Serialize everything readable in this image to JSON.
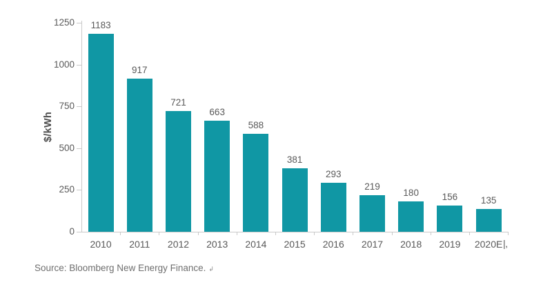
{
  "page": {
    "background": "#ffffff"
  },
  "chart_data": {
    "type": "bar",
    "title": "",
    "xlabel": "",
    "ylabel": "$/kWh",
    "categories": [
      "2010",
      "2011",
      "2012",
      "2013",
      "2014",
      "2015",
      "2016",
      "2017",
      "2018",
      "2019",
      "2020E"
    ],
    "values": [
      1183,
      917,
      721,
      663,
      588,
      381,
      293,
      219,
      180,
      156,
      135
    ],
    "ylim": [
      0,
      1250
    ],
    "yticks": [
      0,
      250,
      500,
      750,
      1000,
      1250
    ],
    "grid": false,
    "legend": "none",
    "data_labels_shown": true,
    "bar_color": "#1097a4",
    "label_color": "#595959",
    "axis_color": "#c9c9c9"
  },
  "annotations": {
    "axis_end_mark": "|‚"
  },
  "footer": {
    "source_text": "Source: Bloomberg New Energy Finance.",
    "return_mark": "↲"
  }
}
